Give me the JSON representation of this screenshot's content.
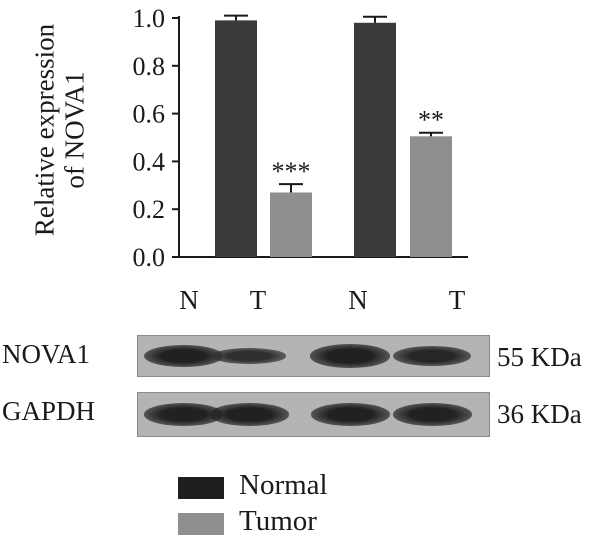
{
  "chart_data": {
    "type": "bar",
    "categories": [
      "N",
      "T",
      "N",
      "T"
    ],
    "values": [
      0.99,
      0.27,
      0.98,
      0.505
    ],
    "errors": [
      0.02,
      0.035,
      0.025,
      0.015
    ],
    "bar_colors": [
      "#3a3a3a",
      "#8f8f8f",
      "#3a3a3a",
      "#8f8f8f"
    ],
    "significance": [
      "",
      "***",
      "",
      "**"
    ],
    "ylabel_lines": [
      "Relative expression",
      "of NOVA1"
    ],
    "xlabel": "",
    "ylim": [
      0.0,
      1.0
    ],
    "yticks": [
      "0.0",
      "0.2",
      "0.4",
      "0.6",
      "0.8",
      "1.0"
    ],
    "legend": [
      {
        "label": "Normal",
        "color": "#1f1f1f"
      },
      {
        "label": "Tumor",
        "color": "#8f8f8f"
      }
    ],
    "legend_placement": "bottom-center"
  },
  "blot": {
    "lanes": [
      "N",
      "T",
      "N",
      "T"
    ],
    "rows": [
      {
        "label": "NOVA1",
        "size": "55 KDa",
        "band_intensity": [
          0.9,
          0.45,
          0.95,
          0.75
        ]
      },
      {
        "label": "GAPDH",
        "size": "36 KDa",
        "band_intensity": [
          0.9,
          0.9,
          0.9,
          0.9
        ]
      }
    ]
  }
}
